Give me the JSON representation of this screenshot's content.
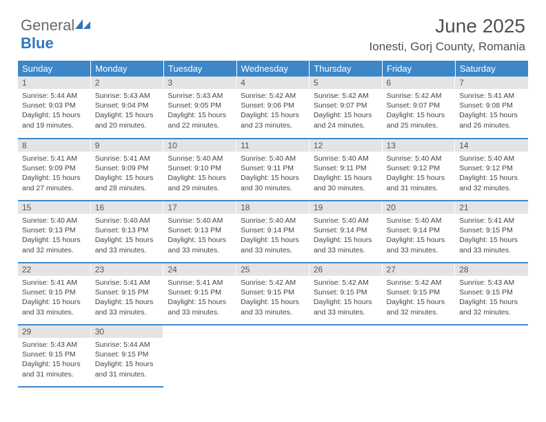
{
  "logo": {
    "text1": "General",
    "text2": "Blue"
  },
  "title": "June 2025",
  "subtitle": "Ionesti, Gorj County, Romania",
  "header_bg": "#3d87c9",
  "daynum_bg": "#e4e4e4",
  "columns": [
    "Sunday",
    "Monday",
    "Tuesday",
    "Wednesday",
    "Thursday",
    "Friday",
    "Saturday"
  ],
  "weeks": [
    [
      {
        "n": "1",
        "sr": "5:44 AM",
        "ss": "9:03 PM",
        "dh": "15",
        "dm": "19"
      },
      {
        "n": "2",
        "sr": "5:43 AM",
        "ss": "9:04 PM",
        "dh": "15",
        "dm": "20"
      },
      {
        "n": "3",
        "sr": "5:43 AM",
        "ss": "9:05 PM",
        "dh": "15",
        "dm": "22"
      },
      {
        "n": "4",
        "sr": "5:42 AM",
        "ss": "9:06 PM",
        "dh": "15",
        "dm": "23"
      },
      {
        "n": "5",
        "sr": "5:42 AM",
        "ss": "9:07 PM",
        "dh": "15",
        "dm": "24"
      },
      {
        "n": "6",
        "sr": "5:42 AM",
        "ss": "9:07 PM",
        "dh": "15",
        "dm": "25"
      },
      {
        "n": "7",
        "sr": "5:41 AM",
        "ss": "9:08 PM",
        "dh": "15",
        "dm": "26"
      }
    ],
    [
      {
        "n": "8",
        "sr": "5:41 AM",
        "ss": "9:09 PM",
        "dh": "15",
        "dm": "27"
      },
      {
        "n": "9",
        "sr": "5:41 AM",
        "ss": "9:09 PM",
        "dh": "15",
        "dm": "28"
      },
      {
        "n": "10",
        "sr": "5:40 AM",
        "ss": "9:10 PM",
        "dh": "15",
        "dm": "29"
      },
      {
        "n": "11",
        "sr": "5:40 AM",
        "ss": "9:11 PM",
        "dh": "15",
        "dm": "30"
      },
      {
        "n": "12",
        "sr": "5:40 AM",
        "ss": "9:11 PM",
        "dh": "15",
        "dm": "30"
      },
      {
        "n": "13",
        "sr": "5:40 AM",
        "ss": "9:12 PM",
        "dh": "15",
        "dm": "31"
      },
      {
        "n": "14",
        "sr": "5:40 AM",
        "ss": "9:12 PM",
        "dh": "15",
        "dm": "32"
      }
    ],
    [
      {
        "n": "15",
        "sr": "5:40 AM",
        "ss": "9:13 PM",
        "dh": "15",
        "dm": "32"
      },
      {
        "n": "16",
        "sr": "5:40 AM",
        "ss": "9:13 PM",
        "dh": "15",
        "dm": "33"
      },
      {
        "n": "17",
        "sr": "5:40 AM",
        "ss": "9:13 PM",
        "dh": "15",
        "dm": "33"
      },
      {
        "n": "18",
        "sr": "5:40 AM",
        "ss": "9:14 PM",
        "dh": "15",
        "dm": "33"
      },
      {
        "n": "19",
        "sr": "5:40 AM",
        "ss": "9:14 PM",
        "dh": "15",
        "dm": "33"
      },
      {
        "n": "20",
        "sr": "5:40 AM",
        "ss": "9:14 PM",
        "dh": "15",
        "dm": "33"
      },
      {
        "n": "21",
        "sr": "5:41 AM",
        "ss": "9:15 PM",
        "dh": "15",
        "dm": "33"
      }
    ],
    [
      {
        "n": "22",
        "sr": "5:41 AM",
        "ss": "9:15 PM",
        "dh": "15",
        "dm": "33"
      },
      {
        "n": "23",
        "sr": "5:41 AM",
        "ss": "9:15 PM",
        "dh": "15",
        "dm": "33"
      },
      {
        "n": "24",
        "sr": "5:41 AM",
        "ss": "9:15 PM",
        "dh": "15",
        "dm": "33"
      },
      {
        "n": "25",
        "sr": "5:42 AM",
        "ss": "9:15 PM",
        "dh": "15",
        "dm": "33"
      },
      {
        "n": "26",
        "sr": "5:42 AM",
        "ss": "9:15 PM",
        "dh": "15",
        "dm": "33"
      },
      {
        "n": "27",
        "sr": "5:42 AM",
        "ss": "9:15 PM",
        "dh": "15",
        "dm": "32"
      },
      {
        "n": "28",
        "sr": "5:43 AM",
        "ss": "9:15 PM",
        "dh": "15",
        "dm": "32"
      }
    ],
    [
      {
        "n": "29",
        "sr": "5:43 AM",
        "ss": "9:15 PM",
        "dh": "15",
        "dm": "31"
      },
      {
        "n": "30",
        "sr": "5:44 AM",
        "ss": "9:15 PM",
        "dh": "15",
        "dm": "31"
      },
      null,
      null,
      null,
      null,
      null
    ]
  ],
  "labels": {
    "sunrise": "Sunrise:",
    "sunset": "Sunset:",
    "daylight_pre": "Daylight:",
    "hours": "hours",
    "and": "and",
    "minutes": "minutes."
  }
}
